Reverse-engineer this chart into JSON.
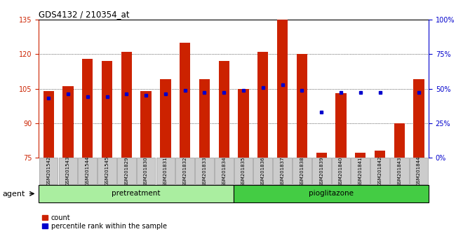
{
  "title": "GDS4132 / 210354_at",
  "samples": [
    "GSM201542",
    "GSM201543",
    "GSM201544",
    "GSM201545",
    "GSM201829",
    "GSM201830",
    "GSM201831",
    "GSM201832",
    "GSM201833",
    "GSM201834",
    "GSM201835",
    "GSM201836",
    "GSM201837",
    "GSM201838",
    "GSM201839",
    "GSM201840",
    "GSM201841",
    "GSM201842",
    "GSM201843",
    "GSM201844"
  ],
  "count_values": [
    104,
    106,
    118,
    117,
    121,
    104,
    109,
    125,
    109,
    117,
    105,
    121,
    135,
    120,
    77,
    103,
    77,
    78,
    90,
    109
  ],
  "percentile_values": [
    43,
    46,
    44,
    44,
    46,
    45,
    46,
    49,
    47,
    47,
    49,
    51,
    53,
    49,
    33,
    47,
    47,
    47,
    null,
    47
  ],
  "ylim_left": [
    75,
    135
  ],
  "ylim_right": [
    0,
    100
  ],
  "yticks_left": [
    75,
    90,
    105,
    120,
    135
  ],
  "yticks_right": [
    0,
    25,
    50,
    75,
    100
  ],
  "ytick_labels_right": [
    "0%",
    "25%",
    "50%",
    "75%",
    "100%"
  ],
  "group1_label": "pretreatment",
  "group2_label": "pioglitazone",
  "group1_count": 10,
  "group2_count": 10,
  "bar_color": "#cc2200",
  "dot_color": "#0000cc",
  "agent_label": "agent",
  "legend_count_label": "count",
  "legend_percentile_label": "percentile rank within the sample",
  "bar_width": 0.55,
  "background_color": "#ffffff",
  "group_bar_color1": "#aaeea0",
  "group_bar_color2": "#44cc44",
  "tick_area_color": "#cccccc"
}
